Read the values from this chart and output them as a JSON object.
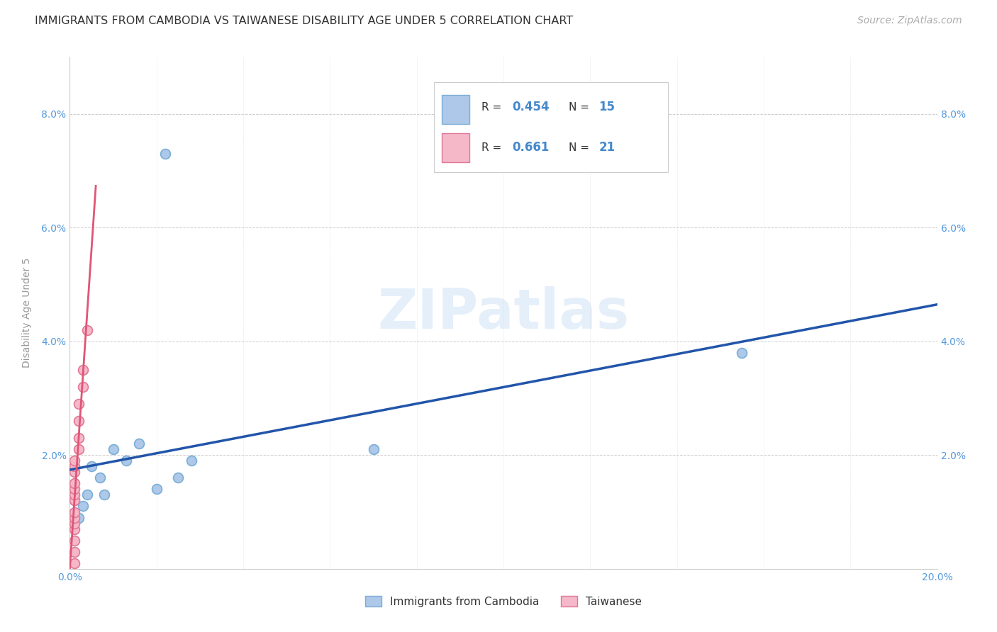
{
  "title": "IMMIGRANTS FROM CAMBODIA VS TAIWANESE DISABILITY AGE UNDER 5 CORRELATION CHART",
  "source": "Source: ZipAtlas.com",
  "ylabel": "Disability Age Under 5",
  "xlim": [
    0.0,
    0.2
  ],
  "ylim": [
    0.0,
    0.09
  ],
  "xticks": [
    0.0,
    0.02,
    0.04,
    0.06,
    0.08,
    0.1,
    0.12,
    0.14,
    0.16,
    0.18,
    0.2
  ],
  "yticks": [
    0.0,
    0.02,
    0.04,
    0.06,
    0.08
  ],
  "background_color": "#ffffff",
  "watermark": "ZIPatlas",
  "cambodia_x": [
    0.001,
    0.002,
    0.003,
    0.004,
    0.005,
    0.007,
    0.008,
    0.01,
    0.013,
    0.016,
    0.02,
    0.025,
    0.028,
    0.07,
    0.155
  ],
  "cambodia_y": [
    0.012,
    0.009,
    0.011,
    0.013,
    0.018,
    0.016,
    0.013,
    0.021,
    0.019,
    0.022,
    0.014,
    0.016,
    0.019,
    0.021,
    0.038
  ],
  "cambodia_outlier_x": [
    0.022
  ],
  "cambodia_outlier_y": [
    0.073
  ],
  "taiwanese_x": [
    0.001,
    0.001,
    0.001,
    0.001,
    0.001,
    0.001,
    0.001,
    0.001,
    0.001,
    0.001,
    0.001,
    0.001,
    0.001,
    0.001,
    0.002,
    0.002,
    0.002,
    0.002,
    0.003,
    0.003,
    0.004
  ],
  "taiwanese_y": [
    0.001,
    0.003,
    0.005,
    0.007,
    0.008,
    0.009,
    0.01,
    0.012,
    0.013,
    0.014,
    0.015,
    0.017,
    0.018,
    0.019,
    0.021,
    0.023,
    0.026,
    0.029,
    0.032,
    0.035,
    0.042
  ],
  "cambodia_color": "#adc8e8",
  "cambodia_edge_color": "#7aaed6",
  "taiwanese_color": "#f5b8c8",
  "taiwanese_edge_color": "#e07898",
  "blue_line_color": "#2255aa",
  "pink_line_color": "#e05575",
  "tick_color": "#5599dd",
  "grid_color": "#cccccc",
  "ylabel_color": "#999999",
  "title_color": "#333333",
  "source_color": "#aaaaaa",
  "title_fontsize": 11.5,
  "axis_label_fontsize": 10,
  "tick_fontsize": 10,
  "source_fontsize": 10,
  "marker_size": 100
}
